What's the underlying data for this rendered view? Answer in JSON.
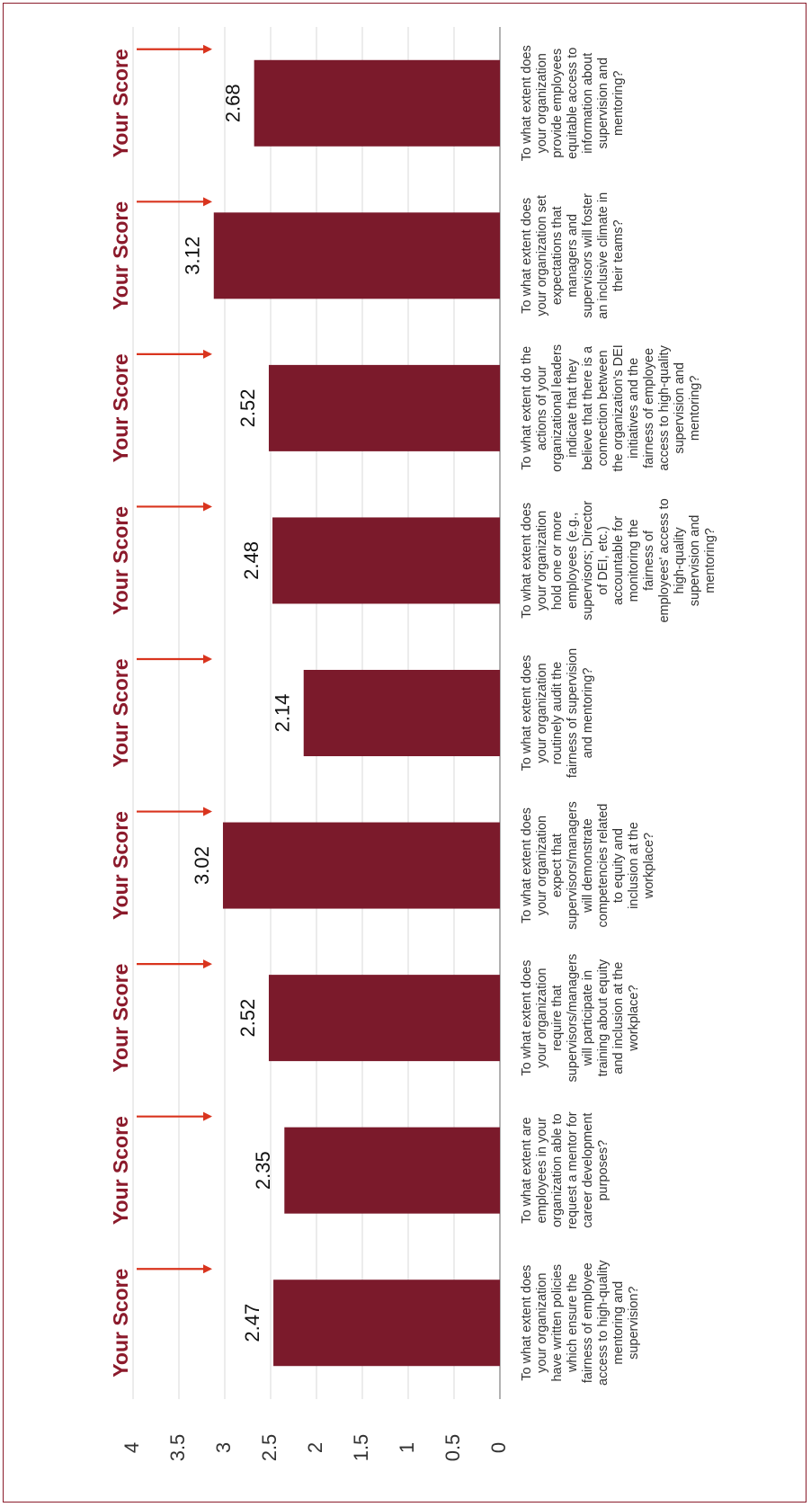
{
  "chart_data": {
    "type": "bar",
    "orientation": "rotated-90-clockwise",
    "ylim": [
      0,
      4
    ],
    "yticks": [
      "0",
      "0.5",
      "1",
      "1.5",
      "2",
      "2.5",
      "3",
      "3.5",
      "4"
    ],
    "grid": true,
    "bar_color": "#7b1a2b",
    "arrow_color": "#d9341e",
    "marker_label": "Your Score",
    "categories": [
      [
        "To what extent does",
        "your organization",
        "have written policies",
        "which ensure the",
        "fairness of employee",
        "access to high-quality",
        "mentoring and",
        "supervision?"
      ],
      [
        "To what extent are",
        "employees in your",
        "organization able to",
        "request a mentor for",
        "career development",
        "purposes?"
      ],
      [
        "To what extent does",
        "your organization",
        "require that",
        "supervisors/managers",
        "will participate in",
        "training about equity",
        "and inclusion at the",
        "workplace?"
      ],
      [
        "To what extent does",
        "your organization",
        "expect that",
        "supervisors/managers",
        "will demonstrate",
        "competencies related",
        "to equity and",
        "inclusion at the",
        "workplace?"
      ],
      [
        "To what extent does",
        "your organization",
        "routinely audit the",
        "fairness of supervision",
        "and mentoring?"
      ],
      [
        "To what extent does",
        "your organization",
        "hold one or more",
        "employees (e.g.,",
        "supervisors; Director",
        "of DEI, etc.)",
        "accountable for",
        "monitoring the",
        "fairness of",
        "employees' access to",
        "high-quality",
        "supervision and",
        "mentoring?"
      ],
      [
        "To what extent do the",
        "actions of your",
        "organizational leaders",
        "indicate that they",
        "believe that there is a",
        "connection between",
        "the organization's DEI",
        "initiatives and the",
        "fairness of employee",
        "access to high-quality",
        "supervision and",
        "mentoring?"
      ],
      [
        "To what extent does",
        "your organization set",
        "expectations that",
        "managers and",
        "supervisors will foster",
        "an inclusive climate in",
        "their teams?"
      ],
      [
        "To what extent does",
        "your organization",
        "provide employees",
        "equitable access to",
        "information about",
        "supervision and",
        "mentoring?"
      ]
    ],
    "values": [
      2.47,
      2.35,
      2.52,
      3.02,
      2.14,
      2.48,
      2.52,
      3.12,
      2.68
    ],
    "value_labels": [
      "2.47",
      "2.35",
      "2.52",
      "3.02",
      "2.14",
      "2.48",
      "2.52",
      "3.12",
      "2.68"
    ]
  }
}
